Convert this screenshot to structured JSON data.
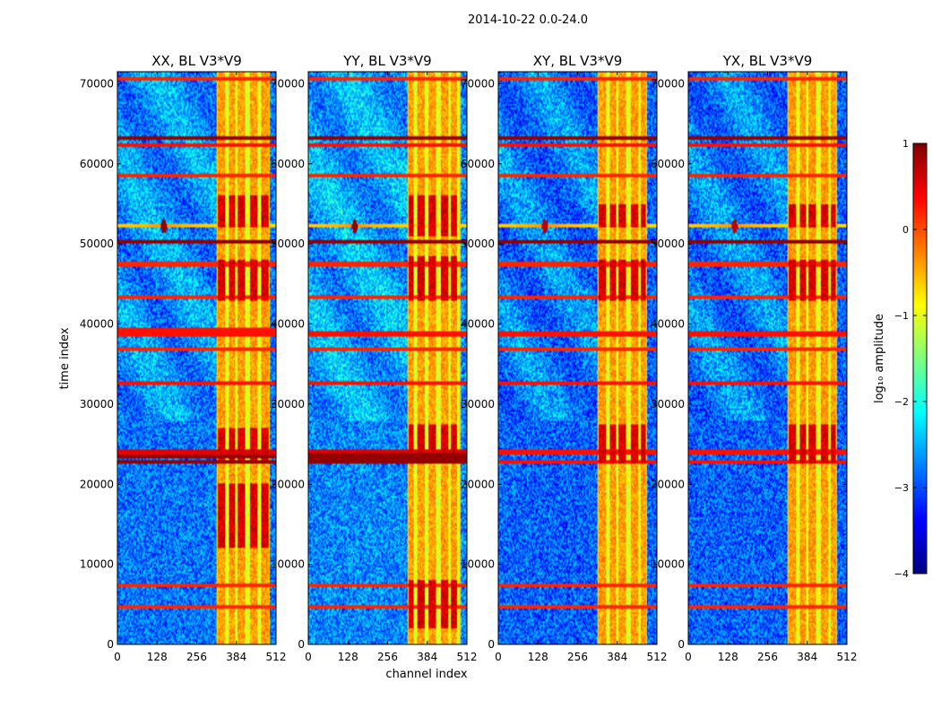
{
  "figure": {
    "suptitle": "2014-10-22 0.0-24.0",
    "xlabel": "channel index",
    "ylabel": "time index"
  },
  "colorbar": {
    "label": "log₁₀ amplitude",
    "range": [
      -4,
      1
    ],
    "ticks": [
      -4,
      -3,
      -2,
      -1,
      0,
      1
    ],
    "tick_labels": [
      "−4",
      "−3",
      "−2",
      "−1",
      "0",
      "1"
    ],
    "colormap": [
      "#00007f",
      "#0000ff",
      "#007fff",
      "#00ffff",
      "#7fff7f",
      "#ffff00",
      "#ff7f00",
      "#ff0000",
      "#7f0000"
    ]
  },
  "chart_data": [
    {
      "type": "heatmap",
      "title": "XX, BL V3*V9",
      "xlabel": "channel index",
      "ylabel": "time index",
      "xlim": [
        0,
        512
      ],
      "ylim": [
        0,
        71500
      ],
      "xticks": [
        0,
        128,
        256,
        384,
        512
      ],
      "yticks": [
        0,
        10000,
        20000,
        30000,
        40000,
        50000,
        60000,
        70000
      ],
      "background_level": -2.8,
      "band_channels": [
        320,
        490
      ],
      "hot_channels": [
        335,
        370,
        400,
        440,
        475
      ],
      "hot_time_ranges": [
        [
          22500,
          27000
        ],
        [
          43000,
          48000
        ],
        [
          52000,
          56000
        ],
        [
          12000,
          20000
        ]
      ],
      "rfi_rows": [
        {
          "t": 4700,
          "v": 0.2
        },
        {
          "t": 7400,
          "v": 0.2
        },
        {
          "t": 22800,
          "v": 0.9
        },
        {
          "t": 23400,
          "v": 0.9
        },
        {
          "t": 24000,
          "v": 0.5
        },
        {
          "t": 32600,
          "v": 0.3
        },
        {
          "t": 36800,
          "v": 0.2
        },
        {
          "t": 38800,
          "v": 0.3
        },
        {
          "t": 39200,
          "v": 0.3
        },
        {
          "t": 43300,
          "v": 0.2
        },
        {
          "t": 47500,
          "v": 0.2
        },
        {
          "t": 50300,
          "v": 0.9
        },
        {
          "t": 58500,
          "v": 0.2
        },
        {
          "t": 62400,
          "v": 0.3
        },
        {
          "t": 63200,
          "v": 0.9
        },
        {
          "t": 70600,
          "v": 0.2
        }
      ],
      "blob": {
        "channel": 150,
        "time": 52200,
        "v": 0.9
      }
    },
    {
      "type": "heatmap",
      "title": "YY, BL V3*V9",
      "xlabel": "channel index",
      "ylabel": "time index",
      "xlim": [
        0,
        512
      ],
      "ylim": [
        0,
        71500
      ],
      "xticks": [
        0,
        128,
        256,
        384,
        512
      ],
      "yticks": [
        0,
        10000,
        20000,
        30000,
        40000,
        50000,
        60000,
        70000
      ],
      "background_level": -2.7,
      "band_channels": [
        320,
        490
      ],
      "hot_channels": [
        330,
        365,
        400,
        440,
        470
      ],
      "hot_time_ranges": [
        [
          22500,
          27500
        ],
        [
          43000,
          48500
        ],
        [
          51000,
          56000
        ],
        [
          2000,
          8000
        ]
      ],
      "rfi_rows": [
        {
          "t": 4700,
          "v": 0.2
        },
        {
          "t": 7400,
          "v": 0.2
        },
        {
          "t": 22800,
          "v": 0.9
        },
        {
          "t": 23200,
          "v": 0.9
        },
        {
          "t": 23600,
          "v": 0.9
        },
        {
          "t": 24000,
          "v": 0.5
        },
        {
          "t": 32600,
          "v": 0.3
        },
        {
          "t": 36800,
          "v": 0.2
        },
        {
          "t": 38800,
          "v": 0.3
        },
        {
          "t": 43300,
          "v": 0.2
        },
        {
          "t": 47500,
          "v": 0.2
        },
        {
          "t": 50300,
          "v": 0.9
        },
        {
          "t": 58500,
          "v": 0.2
        },
        {
          "t": 62400,
          "v": 0.3
        },
        {
          "t": 63200,
          "v": 0.9
        },
        {
          "t": 70600,
          "v": 0.2
        }
      ],
      "blob": {
        "channel": 150,
        "time": 52200,
        "v": 0.9
      }
    },
    {
      "type": "heatmap",
      "title": "XY, BL V3*V9",
      "xlabel": "channel index",
      "ylabel": "time index",
      "xlim": [
        0,
        512
      ],
      "ylim": [
        0,
        71500
      ],
      "xticks": [
        0,
        128,
        256,
        384,
        512
      ],
      "yticks": [
        0,
        10000,
        20000,
        30000,
        40000,
        50000,
        60000,
        70000
      ],
      "background_level": -2.9,
      "band_channels": [
        320,
        480
      ],
      "hot_channels": [
        335,
        370,
        400,
        440,
        470
      ],
      "hot_time_ranges": [
        [
          22500,
          27500
        ],
        [
          43000,
          48000
        ],
        [
          52000,
          55000
        ]
      ],
      "rfi_rows": [
        {
          "t": 4700,
          "v": 0.2
        },
        {
          "t": 7400,
          "v": 0.2
        },
        {
          "t": 22800,
          "v": 0.3
        },
        {
          "t": 24000,
          "v": 0.3
        },
        {
          "t": 32600,
          "v": 0.3
        },
        {
          "t": 36800,
          "v": 0.2
        },
        {
          "t": 38800,
          "v": 0.3
        },
        {
          "t": 43300,
          "v": 0.2
        },
        {
          "t": 47500,
          "v": 0.2
        },
        {
          "t": 50300,
          "v": 0.9
        },
        {
          "t": 58500,
          "v": 0.2
        },
        {
          "t": 62400,
          "v": 0.3
        },
        {
          "t": 63200,
          "v": 0.9
        },
        {
          "t": 70600,
          "v": 0.2
        }
      ],
      "blob": {
        "channel": 150,
        "time": 52200,
        "v": 0.7
      }
    },
    {
      "type": "heatmap",
      "title": "YX, BL V3*V9",
      "xlabel": "channel index",
      "ylabel": "time index",
      "xlim": [
        0,
        512
      ],
      "ylim": [
        0,
        71500
      ],
      "xticks": [
        0,
        128,
        256,
        384,
        512
      ],
      "yticks": [
        0,
        10000,
        20000,
        30000,
        40000,
        50000,
        60000,
        70000
      ],
      "background_level": -2.9,
      "band_channels": [
        320,
        480
      ],
      "hot_channels": [
        335,
        370,
        400,
        440,
        470
      ],
      "hot_time_ranges": [
        [
          22500,
          27500
        ],
        [
          43000,
          48000
        ],
        [
          52000,
          55000
        ]
      ],
      "rfi_rows": [
        {
          "t": 4700,
          "v": 0.2
        },
        {
          "t": 7400,
          "v": 0.2
        },
        {
          "t": 22800,
          "v": 0.3
        },
        {
          "t": 24000,
          "v": 0.3
        },
        {
          "t": 32600,
          "v": 0.3
        },
        {
          "t": 36800,
          "v": 0.2
        },
        {
          "t": 38800,
          "v": 0.3
        },
        {
          "t": 43300,
          "v": 0.2
        },
        {
          "t": 47500,
          "v": 0.2
        },
        {
          "t": 50300,
          "v": 0.9
        },
        {
          "t": 58500,
          "v": 0.2
        },
        {
          "t": 62400,
          "v": 0.3
        },
        {
          "t": 63200,
          "v": 0.9
        },
        {
          "t": 70600,
          "v": 0.2
        }
      ],
      "blob": {
        "channel": 150,
        "time": 52200,
        "v": 0.7
      }
    }
  ]
}
